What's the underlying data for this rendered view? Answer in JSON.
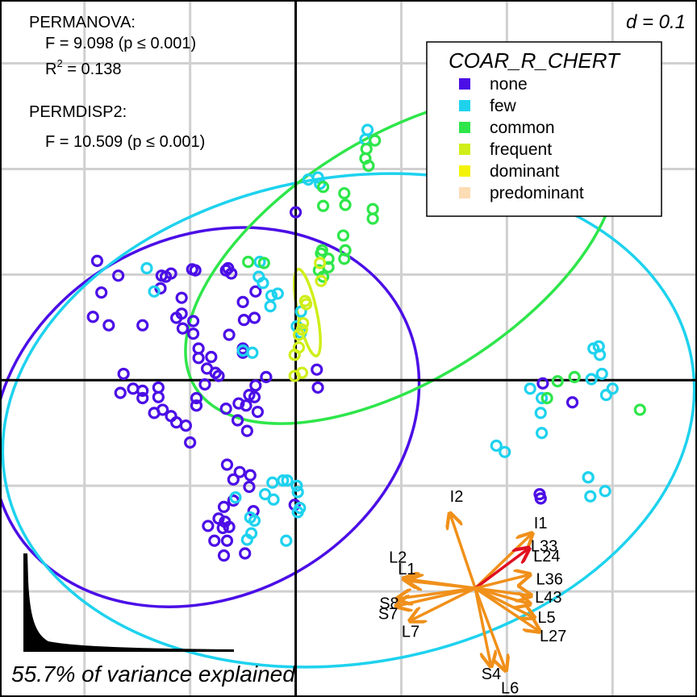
{
  "chart_data": {
    "type": "scatter",
    "title": "",
    "xlabel": "",
    "ylabel": "",
    "scale_label": "d = 0.1",
    "variance_label": "55.7% of variance explained",
    "stats": {
      "permanova_title": "PERMANOVA:",
      "permanova_f": "F = 9.098 (p ≤ 0.001)",
      "permanova_r2_prefix": "R",
      "permanova_r2_suffix": " = 0.138",
      "permdisp_title": "PERMDISP2:",
      "permdisp_f": "F = 10.509 (p ≤ 0.001)"
    },
    "legend": {
      "title": "COAR_R_CHERT",
      "position": "top-right",
      "entries": [
        {
          "label": "none",
          "color": "#4b0ee6"
        },
        {
          "label": "few",
          "color": "#1ed2ee"
        },
        {
          "label": "common",
          "color": "#2ee64a"
        },
        {
          "label": "frequent",
          "color": "#d0ee1a"
        },
        {
          "label": "dominant",
          "color": "#f2f20a"
        },
        {
          "label": "predominant",
          "color": "#fcdcb4"
        }
      ]
    },
    "xlim": [
      -0.28,
      0.38
    ],
    "ylim": [
      -0.3,
      0.36
    ],
    "grid": true,
    "series": [
      {
        "name": "none",
        "color": "#4b0ee6",
        "points": [
          [
            -0.188,
            0.113
          ],
          [
            -0.168,
            0.099
          ],
          [
            -0.184,
            0.083
          ],
          [
            -0.192,
            0.06
          ],
          [
            -0.177,
            0.052
          ],
          [
            -0.145,
            0.052
          ],
          [
            -0.128,
            0.087
          ],
          [
            -0.123,
            0.098
          ],
          [
            -0.127,
            0.099
          ],
          [
            -0.118,
            0.101
          ],
          [
            -0.098,
            0.105
          ],
          [
            -0.095,
            0.104
          ],
          [
            -0.066,
            0.104
          ],
          [
            -0.061,
            0.101
          ],
          [
            -0.064,
            0.106
          ],
          [
            -0.108,
            0.078
          ],
          [
            -0.108,
            0.063
          ],
          [
            -0.107,
            0.049
          ],
          [
            -0.113,
            0.059
          ],
          [
            -0.097,
            0.056
          ],
          [
            -0.097,
            0.044
          ],
          [
            -0.092,
            0.03
          ],
          [
            -0.092,
            0.021
          ],
          [
            -0.08,
            0.022
          ],
          [
            -0.063,
            0.043
          ],
          [
            -0.05,
            0.074
          ],
          [
            -0.049,
            0.057
          ],
          [
            -0.038,
            0.084
          ],
          [
            -0.039,
            0.059
          ],
          [
            -0.05,
            0.026
          ],
          [
            -0.05,
            0.03
          ],
          [
            -0.163,
            0.006
          ],
          [
            -0.154,
            -0.008
          ],
          [
            -0.166,
            -0.012
          ],
          [
            -0.145,
            -0.01
          ],
          [
            -0.145,
            -0.017
          ],
          [
            -0.13,
            -0.007
          ],
          [
            -0.13,
            -0.016
          ],
          [
            -0.134,
            -0.031
          ],
          [
            -0.126,
            -0.028
          ],
          [
            -0.113,
            -0.04
          ],
          [
            -0.118,
            -0.034
          ],
          [
            -0.104,
            -0.043
          ],
          [
            -0.094,
            -0.024
          ],
          [
            -0.094,
            -0.017
          ],
          [
            -0.086,
            -0.004
          ],
          [
            -0.084,
            0.011
          ],
          [
            -0.073,
            0.004
          ],
          [
            -0.076,
            0.007
          ],
          [
            -0.066,
            -0.027
          ],
          [
            -0.055,
            -0.038
          ],
          [
            -0.046,
            -0.048
          ],
          [
            -0.054,
            -0.022
          ],
          [
            -0.047,
            -0.024
          ],
          [
            -0.044,
            -0.014
          ],
          [
            -0.039,
            -0.016
          ],
          [
            -0.038,
            -0.005
          ],
          [
            -0.028,
            0.003
          ],
          [
            -0.036,
            -0.03
          ],
          [
            -0.1,
            -0.059
          ],
          [
            -0.065,
            -0.08
          ],
          [
            -0.053,
            -0.087
          ],
          [
            -0.059,
            -0.094
          ],
          [
            -0.059,
            -0.114
          ],
          [
            -0.068,
            -0.12
          ],
          [
            -0.073,
            -0.131
          ],
          [
            -0.067,
            -0.134
          ],
          [
            -0.069,
            -0.14
          ],
          [
            -0.063,
            -0.139
          ],
          [
            -0.065,
            -0.152
          ],
          [
            -0.068,
            -0.166
          ],
          [
            -0.077,
            -0.152
          ],
          [
            -0.083,
            -0.138
          ],
          [
            -0.044,
            -0.101
          ],
          [
            -0.043,
            -0.09
          ],
          [
            -0.04,
            -0.124
          ],
          [
            -0.048,
            -0.164
          ],
          [
            0.0,
            0.159
          ],
          [
            0.02,
            0.01
          ],
          [
            0.021,
            -0.007
          ],
          [
            0.231,
            -0.108
          ],
          [
            0.232,
            -0.112
          ],
          [
            0.234,
            -0.003
          ],
          [
            0.262,
            -0.021
          ],
          [
            -0.001,
            -0.118
          ]
        ]
      },
      {
        "name": "few",
        "color": "#1ed2ee",
        "points": [
          [
            -0.141,
            0.106
          ],
          [
            -0.134,
            0.084
          ],
          [
            -0.035,
            0.098
          ],
          [
            -0.034,
            0.112
          ],
          [
            -0.031,
            0.092
          ],
          [
            -0.023,
            0.08
          ],
          [
            -0.017,
            0.082
          ],
          [
            -0.024,
            0.07
          ],
          [
            -0.05,
            0.028
          ],
          [
            -0.041,
            0.026
          ],
          [
            0.001,
            0.051
          ],
          [
            0.005,
            0.045
          ],
          [
            0.005,
            0.065
          ],
          [
            0.012,
            0.19
          ],
          [
            0.021,
            0.192
          ],
          [
            0.023,
            0.186
          ],
          [
            0.066,
            0.228
          ],
          [
            0.068,
            0.237
          ],
          [
            0.222,
            -0.008
          ],
          [
            0.233,
            -0.017
          ],
          [
            0.232,
            -0.031
          ],
          [
            0.233,
            -0.05
          ],
          [
            0.19,
            -0.062
          ],
          [
            0.198,
            -0.068
          ],
          [
            0.287,
            0.032
          ],
          [
            0.288,
            0.024
          ],
          [
            0.282,
            0.03
          ],
          [
            0.28,
            0.001
          ],
          [
            0.29,
            0.006
          ],
          [
            0.3,
            -0.008
          ],
          [
            0.294,
            -0.014
          ],
          [
            0.277,
            -0.092
          ],
          [
            0.293,
            -0.105
          ],
          [
            0.279,
            -0.11
          ],
          [
            0.277,
            -0.092
          ],
          [
            -0.012,
            -0.095
          ],
          [
            -0.022,
            -0.097
          ],
          [
            0.001,
            -0.1
          ],
          [
            0.002,
            -0.106
          ],
          [
            0.004,
            -0.121
          ],
          [
            -0.057,
            -0.111
          ],
          [
            -0.029,
            -0.108
          ],
          [
            -0.021,
            -0.113
          ],
          [
            -0.008,
            -0.095
          ],
          [
            -0.043,
            -0.13
          ],
          [
            -0.039,
            -0.133
          ],
          [
            -0.042,
            -0.145
          ],
          [
            -0.046,
            -0.151
          ],
          [
            -0.009,
            -0.152
          ],
          [
            0.002,
            -0.125
          ]
        ]
      },
      {
        "name": "common",
        "color": "#2ee64a",
        "points": [
          [
            0.067,
            0.219
          ],
          [
            0.075,
            0.227
          ],
          [
            0.066,
            0.21
          ],
          [
            0.069,
            0.203
          ],
          [
            0.026,
            0.183
          ],
          [
            0.026,
            0.165
          ],
          [
            0.046,
            0.177
          ],
          [
            0.047,
            0.166
          ],
          [
            0.073,
            0.162
          ],
          [
            0.073,
            0.153
          ],
          [
            0.045,
            0.137
          ],
          [
            0.025,
            0.123
          ],
          [
            0.031,
            0.115
          ],
          [
            0.046,
            0.115
          ],
          [
            0.031,
            0.107
          ],
          [
            0.026,
            0.098
          ],
          [
            0.022,
            0.104
          ],
          [
            0.024,
            0.12
          ],
          [
            0.047,
            0.123
          ],
          [
            -0.045,
            0.112
          ],
          [
            -0.03,
            0.111
          ],
          [
            0.248,
            -0.001
          ],
          [
            0.238,
            -0.017
          ],
          [
            0.264,
            0.003
          ],
          [
            0.326,
            -0.028
          ]
        ]
      },
      {
        "name": "frequent",
        "color": "#d0ee1a",
        "points": [
          [
            0.023,
            0.111
          ],
          [
            0.024,
            0.094
          ],
          [
            0.009,
            0.075
          ],
          [
            0.01,
            0.072
          ],
          [
            0.007,
            0.054
          ],
          [
            0.006,
            0.048
          ],
          [
            0.003,
            0.043
          ],
          [
            -0.001,
            0.024
          ],
          [
            0.006,
            0.007
          ],
          [
            -0.001,
            0.004
          ],
          [
            0.003,
            0.031
          ]
        ]
      }
    ],
    "ellipses": [
      {
        "name": "none",
        "color": "#4b0ee6",
        "center": [
          -0.085,
          -0.035
        ],
        "rx": 0.21,
        "ry": 0.17,
        "angle_deg": -28
      },
      {
        "name": "few",
        "color": "#1ed2ee",
        "center": [
          0.05,
          -0.038
        ],
        "rx": 0.33,
        "ry": 0.23,
        "angle_deg": -10
      },
      {
        "name": "common",
        "color": "#2ee64a",
        "center": [
          0.1,
          0.115
        ],
        "rx": 0.23,
        "ry": 0.115,
        "angle_deg": -32
      },
      {
        "name": "frequent",
        "color": "#d0ee1a",
        "center": [
          0.011,
          0.064
        ],
        "rx": 0.042,
        "ry": 0.009,
        "angle_deg": 78
      }
    ],
    "vectors": {
      "origin": [
        0.17,
        -0.197
      ],
      "color": "#f0901a",
      "highlight_color": "#e01020",
      "items": [
        {
          "label": "I2",
          "tip": [
            0.146,
            -0.126
          ],
          "highlight": false
        },
        {
          "label": "I1",
          "tip": [
            0.224,
            -0.145
          ],
          "highlight": false
        },
        {
          "label": "L33",
          "tip": [
            0.221,
            -0.159
          ],
          "highlight": true
        },
        {
          "label": "L24",
          "tip": [
            0.222,
            -0.184
          ],
          "highlight": false
        },
        {
          "label": "L36",
          "tip": [
            0.223,
            -0.204
          ],
          "highlight": false
        },
        {
          "label": "L43",
          "tip": [
            0.222,
            -0.212
          ],
          "highlight": false
        },
        {
          "label": "L5",
          "tip": [
            0.226,
            -0.225
          ],
          "highlight": false
        },
        {
          "label": "L27",
          "tip": [
            0.231,
            -0.238
          ],
          "highlight": false
        },
        {
          "label": "L2",
          "tip": [
            0.102,
            -0.188
          ],
          "highlight": false
        },
        {
          "label": "L1",
          "tip": [
            0.106,
            -0.19
          ],
          "highlight": false
        },
        {
          "label": "S8",
          "tip": [
            0.096,
            -0.207
          ],
          "highlight": false
        },
        {
          "label": "S7",
          "tip": [
            0.095,
            -0.214
          ],
          "highlight": false
        },
        {
          "label": "L7",
          "tip": [
            0.108,
            -0.228
          ],
          "highlight": false
        },
        {
          "label": "S4",
          "tip": [
            0.185,
            -0.271
          ],
          "highlight": false
        },
        {
          "label": "L6",
          "tip": [
            0.199,
            -0.275
          ],
          "highlight": false
        }
      ]
    }
  }
}
